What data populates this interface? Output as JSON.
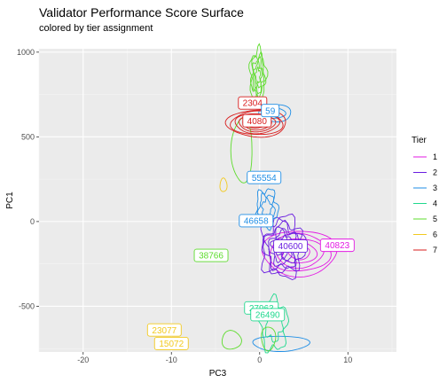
{
  "chart_data": {
    "type": "contour",
    "title": "Validator Performance Score Surface",
    "subtitle": "colored by tier assignment",
    "xlabel": "PC3",
    "ylabel": "PC1",
    "xlim": [
      -25,
      15.5
    ],
    "ylim": [
      -770,
      1020
    ],
    "x_ticks": [
      -20,
      -10,
      0,
      10
    ],
    "y_ticks": [
      -500,
      0,
      500,
      1000
    ],
    "grid": true,
    "legend": {
      "title": "Tier",
      "position": "right",
      "entries": [
        {
          "label": "1",
          "color": "#e31ae3"
        },
        {
          "label": "2",
          "color": "#6a1ee0"
        },
        {
          "label": "3",
          "color": "#1f8ee6"
        },
        {
          "label": "4",
          "color": "#1fd98e"
        },
        {
          "label": "5",
          "color": "#5ddc2c"
        },
        {
          "label": "6",
          "color": "#f2c91e"
        },
        {
          "label": "7",
          "color": "#d81c1c"
        }
      ]
    },
    "labels": [
      {
        "text": "2304",
        "x": -0.8,
        "y": 700,
        "tier": "7"
      },
      {
        "text": "4080",
        "x": -0.3,
        "y": 595,
        "tier": "7"
      },
      {
        "text": "59",
        "x": 1.2,
        "y": 655,
        "tier": "3"
      },
      {
        "text": "55554",
        "x": 0.5,
        "y": 260,
        "tier": "3"
      },
      {
        "text": "46658",
        "x": -0.4,
        "y": 5,
        "tier": "3"
      },
      {
        "text": "40600",
        "x": 3.5,
        "y": -145,
        "tier": "2"
      },
      {
        "text": "40823",
        "x": 8.8,
        "y": -140,
        "tier": "1"
      },
      {
        "text": "38766",
        "x": -5.5,
        "y": -200,
        "tier": "5"
      },
      {
        "text": "27963",
        "x": 0.2,
        "y": -510,
        "tier": "4"
      },
      {
        "text": "26490",
        "x": 0.9,
        "y": -550,
        "tier": "4"
      },
      {
        "text": "23077",
        "x": -10.8,
        "y": -640,
        "tier": "6"
      },
      {
        "text": "15072",
        "x": -10.0,
        "y": -720,
        "tier": "6"
      }
    ],
    "series": [
      {
        "tier": "1",
        "shape": "rings",
        "cx": 4.5,
        "cy": -185,
        "rx": 4.2,
        "ry": 135,
        "rings": 5
      },
      {
        "tier": "2",
        "shape": "blob",
        "cx": 2.6,
        "cy": -150,
        "rx": 2.4,
        "ry": 175,
        "rings": 7
      },
      {
        "tier": "3",
        "shape": "blob",
        "cx": 0.8,
        "cy": 80,
        "rx": 1.2,
        "ry": 110,
        "rings": 3
      },
      {
        "tier": "3",
        "shape": "rings",
        "cx": 1.8,
        "cy": 640,
        "rx": 1.8,
        "ry": 50,
        "rings": 2
      },
      {
        "tier": "3",
        "shape": "rings",
        "cx": 2.4,
        "cy": -720,
        "rx": 3.2,
        "ry": 45,
        "rings": 1
      },
      {
        "tier": "4",
        "shape": "blob",
        "cx": 1.6,
        "cy": -610,
        "rx": 1.5,
        "ry": 150,
        "rings": 2
      },
      {
        "tier": "5",
        "shape": "blob",
        "cx": -0.2,
        "cy": 860,
        "rx": 0.9,
        "ry": 150,
        "rings": 5
      },
      {
        "tier": "5",
        "shape": "rings",
        "cx": -2.0,
        "cy": 420,
        "rx": 1.2,
        "ry": 190,
        "rings": 1
      },
      {
        "tier": "5",
        "shape": "rings",
        "cx": -3.2,
        "cy": -700,
        "rx": 1.1,
        "ry": 55,
        "rings": 1
      },
      {
        "tier": "5",
        "shape": "rings",
        "cx": 1.0,
        "cy": -690,
        "rx": 0.8,
        "ry": 70,
        "rings": 1
      },
      {
        "tier": "6",
        "shape": "rings",
        "cx": -4.1,
        "cy": 215,
        "rx": 0.4,
        "ry": 40,
        "rings": 1
      },
      {
        "tier": "7",
        "shape": "rings",
        "cx": -0.3,
        "cy": 580,
        "rx": 3.4,
        "ry": 80,
        "rings": 7
      }
    ]
  }
}
